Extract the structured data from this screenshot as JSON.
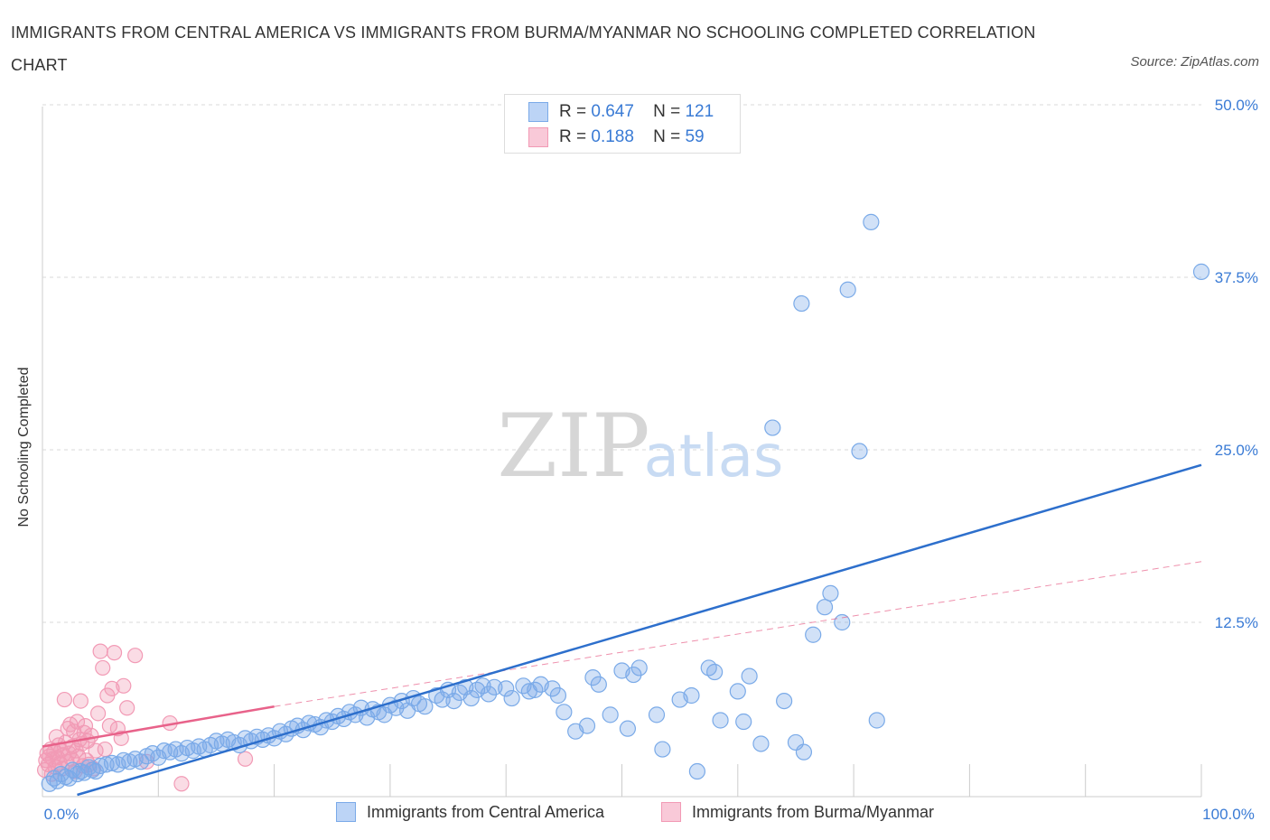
{
  "title": "IMMIGRANTS FROM CENTRAL AMERICA VS IMMIGRANTS FROM BURMA/MYANMAR NO SCHOOLING COMPLETED CORRELATION CHART",
  "source": "Source: ZipAtlas.com",
  "watermark": {
    "zip": "ZIP",
    "atlas": "atlas"
  },
  "legend": {
    "rows": [
      {
        "r_label": "R =",
        "r_value": "0.647",
        "n_label": "N =",
        "n_value": "121"
      },
      {
        "r_label": "R =",
        "r_value": "0.188",
        "n_label": "N =",
        "n_value": "59"
      }
    ]
  },
  "colors": {
    "blue": "#7aaae8",
    "blue_line": "#2d6fcc",
    "pink": "#f29ab5",
    "pink_line": "#e8628a",
    "tick": "#3a7bd5",
    "grid": "#d8d8d8"
  },
  "chart_data": {
    "type": "scatter",
    "title": "IMMIGRANTS FROM CENTRAL AMERICA VS IMMIGRANTS FROM BURMA/MYANMAR NO SCHOOLING COMPLETED CORRELATION CHART",
    "xlabel": "",
    "ylabel": "No Schooling Completed",
    "xlim": [
      0,
      100
    ],
    "ylim": [
      0,
      50
    ],
    "x_tick_labels": [
      "0.0%",
      "100.0%"
    ],
    "y_ticks": [
      12.5,
      25.0,
      37.5,
      50.0
    ],
    "y_tick_labels": [
      "12.5%",
      "25.0%",
      "37.5%",
      "50.0%"
    ],
    "legend_position": "bottom",
    "series": [
      {
        "name": "Immigrants from Central America",
        "color": "#7aaae8",
        "trend": {
          "x": [
            3,
            100
          ],
          "y": [
            0,
            23.9
          ]
        },
        "points": [
          [
            0.6,
            0.8
          ],
          [
            1.0,
            1.2
          ],
          [
            1.3,
            1.0
          ],
          [
            1.6,
            1.5
          ],
          [
            2.0,
            1.3
          ],
          [
            2.3,
            1.2
          ],
          [
            2.6,
            1.8
          ],
          [
            3.0,
            1.5
          ],
          [
            3.3,
            1.7
          ],
          [
            3.6,
            1.6
          ],
          [
            4.0,
            2.0
          ],
          [
            4.3,
            1.8
          ],
          [
            4.6,
            1.7
          ],
          [
            5.0,
            2.1
          ],
          [
            5.5,
            2.2
          ],
          [
            6.0,
            2.3
          ],
          [
            6.5,
            2.2
          ],
          [
            7.0,
            2.5
          ],
          [
            7.5,
            2.4
          ],
          [
            8.0,
            2.6
          ],
          [
            8.5,
            2.4
          ],
          [
            9.0,
            2.8
          ],
          [
            9.5,
            3.0
          ],
          [
            10.0,
            2.7
          ],
          [
            10.5,
            3.2
          ],
          [
            11.0,
            3.1
          ],
          [
            11.5,
            3.3
          ],
          [
            12.0,
            3.0
          ],
          [
            12.5,
            3.4
          ],
          [
            13.0,
            3.2
          ],
          [
            13.5,
            3.5
          ],
          [
            14.0,
            3.3
          ],
          [
            14.5,
            3.6
          ],
          [
            15.0,
            3.9
          ],
          [
            15.5,
            3.7
          ],
          [
            16.0,
            4.0
          ],
          [
            16.5,
            3.8
          ],
          [
            17.0,
            3.6
          ],
          [
            17.5,
            4.1
          ],
          [
            18.0,
            3.9
          ],
          [
            18.5,
            4.2
          ],
          [
            19.0,
            4.0
          ],
          [
            19.5,
            4.3
          ],
          [
            20.0,
            4.1
          ],
          [
            20.5,
            4.6
          ],
          [
            21.0,
            4.4
          ],
          [
            21.5,
            4.8
          ],
          [
            22.0,
            5.0
          ],
          [
            22.5,
            4.7
          ],
          [
            23.0,
            5.2
          ],
          [
            23.5,
            5.1
          ],
          [
            24.0,
            4.9
          ],
          [
            24.5,
            5.4
          ],
          [
            25.0,
            5.3
          ],
          [
            25.5,
            5.7
          ],
          [
            26.0,
            5.5
          ],
          [
            26.5,
            6.0
          ],
          [
            27.0,
            5.8
          ],
          [
            27.5,
            6.3
          ],
          [
            28.0,
            5.6
          ],
          [
            28.5,
            6.2
          ],
          [
            29.0,
            6.0
          ],
          [
            29.5,
            5.8
          ],
          [
            30.0,
            6.5
          ],
          [
            30.5,
            6.3
          ],
          [
            31.0,
            6.8
          ],
          [
            31.5,
            6.1
          ],
          [
            32.0,
            7.0
          ],
          [
            32.5,
            6.6
          ],
          [
            33.0,
            6.4
          ],
          [
            34.0,
            7.2
          ],
          [
            34.5,
            6.9
          ],
          [
            35.0,
            7.6
          ],
          [
            35.5,
            6.8
          ],
          [
            36.0,
            7.4
          ],
          [
            36.5,
            7.8
          ],
          [
            37.0,
            7.0
          ],
          [
            37.5,
            7.6
          ],
          [
            38.0,
            7.9
          ],
          [
            38.5,
            7.3
          ],
          [
            39.0,
            7.8
          ],
          [
            40.0,
            7.7
          ],
          [
            40.5,
            7.0
          ],
          [
            41.5,
            7.9
          ],
          [
            42.0,
            7.5
          ],
          [
            42.5,
            7.6
          ],
          [
            43.0,
            8.0
          ],
          [
            44.0,
            7.7
          ],
          [
            44.5,
            7.2
          ],
          [
            45.0,
            6.0
          ],
          [
            46.0,
            4.6
          ],
          [
            47.0,
            5.0
          ],
          [
            47.5,
            8.5
          ],
          [
            48.0,
            8.0
          ],
          [
            49.0,
            5.8
          ],
          [
            50.0,
            9.0
          ],
          [
            50.5,
            4.8
          ],
          [
            51.0,
            8.7
          ],
          [
            51.5,
            9.2
          ],
          [
            53.0,
            5.8
          ],
          [
            53.5,
            3.3
          ],
          [
            55.0,
            6.9
          ],
          [
            56.0,
            7.2
          ],
          [
            56.5,
            1.7
          ],
          [
            57.5,
            9.2
          ],
          [
            58.0,
            8.9
          ],
          [
            58.5,
            5.4
          ],
          [
            60.0,
            7.5
          ],
          [
            60.5,
            5.3
          ],
          [
            61.0,
            8.6
          ],
          [
            62.0,
            3.7
          ],
          [
            63.0,
            26.6
          ],
          [
            64.0,
            6.8
          ],
          [
            65.0,
            3.8
          ],
          [
            65.5,
            35.6
          ],
          [
            65.7,
            3.1
          ],
          [
            66.5,
            11.6
          ],
          [
            67.5,
            13.6
          ],
          [
            68.0,
            14.6
          ],
          [
            69.0,
            12.5
          ],
          [
            69.5,
            36.6
          ],
          [
            70.5,
            24.9
          ],
          [
            71.5,
            41.5
          ],
          [
            72.0,
            5.4
          ],
          [
            100.0,
            37.9
          ]
        ]
      },
      {
        "name": "Immigrants from Burma/Myanmar",
        "color": "#f29ab5",
        "trend": {
          "x": [
            0,
            20
          ],
          "y": [
            3.5,
            6.4
          ]
        },
        "trend_dashed": {
          "x": [
            20,
            100
          ],
          "y": [
            6.4,
            16.9
          ]
        },
        "points": [
          [
            0.2,
            1.8
          ],
          [
            0.3,
            2.5
          ],
          [
            0.4,
            3.0
          ],
          [
            0.5,
            2.2
          ],
          [
            0.6,
            2.8
          ],
          [
            0.7,
            3.3
          ],
          [
            0.8,
            1.5
          ],
          [
            0.9,
            2.6
          ],
          [
            1.0,
            3.1
          ],
          [
            1.1,
            2.0
          ],
          [
            1.2,
            4.2
          ],
          [
            1.3,
            2.7
          ],
          [
            1.4,
            3.6
          ],
          [
            1.5,
            2.3
          ],
          [
            1.6,
            3.2
          ],
          [
            1.7,
            1.9
          ],
          [
            1.8,
            2.9
          ],
          [
            1.9,
            6.9
          ],
          [
            2.0,
            3.8
          ],
          [
            2.1,
            2.4
          ],
          [
            2.2,
            4.8
          ],
          [
            2.3,
            3.0
          ],
          [
            2.4,
            5.1
          ],
          [
            2.5,
            2.6
          ],
          [
            2.6,
            3.5
          ],
          [
            2.7,
            4.6
          ],
          [
            2.8,
            1.7
          ],
          [
            2.9,
            3.2
          ],
          [
            3.0,
            5.3
          ],
          [
            3.1,
            2.8
          ],
          [
            3.2,
            4.0
          ],
          [
            3.3,
            6.8
          ],
          [
            3.4,
            3.7
          ],
          [
            3.5,
            2.1
          ],
          [
            3.6,
            4.5
          ],
          [
            3.7,
            5.0
          ],
          [
            3.8,
            2.5
          ],
          [
            3.9,
            3.9
          ],
          [
            4.0,
            2.2
          ],
          [
            4.2,
            4.3
          ],
          [
            4.4,
            1.9
          ],
          [
            4.6,
            3.2
          ],
          [
            4.8,
            5.9
          ],
          [
            5.0,
            10.4
          ],
          [
            5.2,
            9.2
          ],
          [
            5.4,
            3.3
          ],
          [
            5.6,
            7.2
          ],
          [
            5.8,
            5.0
          ],
          [
            6.0,
            7.7
          ],
          [
            6.2,
            10.3
          ],
          [
            6.5,
            4.8
          ],
          [
            6.8,
            4.1
          ],
          [
            7.0,
            7.9
          ],
          [
            7.3,
            6.3
          ],
          [
            8.0,
            10.1
          ],
          [
            9.0,
            2.4
          ],
          [
            11.0,
            5.2
          ],
          [
            12.0,
            0.8
          ],
          [
            17.5,
            2.6
          ]
        ]
      }
    ]
  },
  "bottom_legend": [
    "Immigrants from Central America",
    "Immigrants from Burma/Myanmar"
  ]
}
